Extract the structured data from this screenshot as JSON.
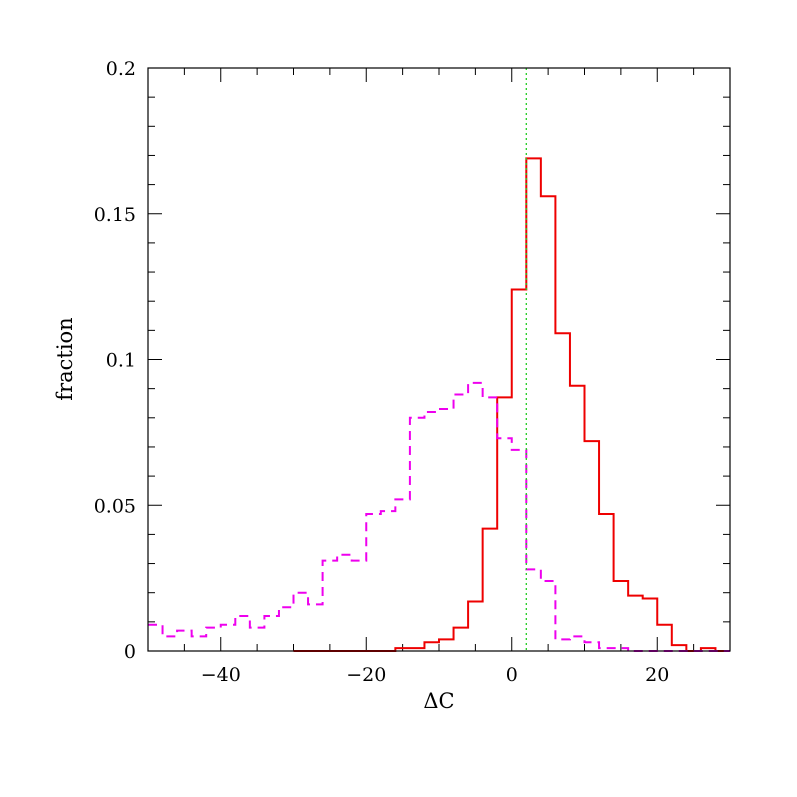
{
  "chart_data": {
    "type": "histogram",
    "xlabel": "ΔC",
    "ylabel": "fraction",
    "xlim": [
      -50,
      30
    ],
    "ylim": [
      0,
      0.2
    ],
    "bin_width": 2,
    "x_ticks": [
      -40,
      -20,
      0,
      20
    ],
    "x_tick_labels": [
      "−40",
      "−20",
      "0",
      "20"
    ],
    "y_ticks": [
      0,
      0.05,
      0.1,
      0.15,
      0.2
    ],
    "y_tick_labels": [
      "0",
      "0.05",
      "0.1",
      "0.15",
      "0.2"
    ],
    "reference_line": {
      "x": 2,
      "color": "#22cc22",
      "style": "dotted"
    },
    "series": [
      {
        "color": "#ee0000",
        "style": "solid",
        "bin_start": -30,
        "values": [
          0,
          0,
          0,
          0,
          0,
          0,
          0,
          0.001,
          0.001,
          0.003,
          0.004,
          0.008,
          0.017,
          0.042,
          0.087,
          0.124,
          0.169,
          0.156,
          0.109,
          0.091,
          0.072,
          0.047,
          0.024,
          0.019,
          0.018,
          0.009,
          0.002,
          0.0,
          0.001,
          0.0
        ]
      },
      {
        "color": "#ee00ee",
        "style": "dashed",
        "bin_start": -50,
        "values": [
          0.009,
          0.005,
          0.007,
          0.005,
          0.008,
          0.009,
          0.012,
          0.008,
          0.012,
          0.015,
          0.02,
          0.016,
          0.031,
          0.033,
          0.031,
          0.047,
          0.048,
          0.052,
          0.08,
          0.082,
          0.083,
          0.088,
          0.092,
          0.087,
          0.073,
          0.069,
          0.028,
          0.024,
          0.004,
          0.005,
          0.003,
          0.001,
          0.001,
          0.0,
          0.0,
          0.0,
          0.0,
          0.0,
          0.0,
          0.0
        ]
      }
    ]
  }
}
